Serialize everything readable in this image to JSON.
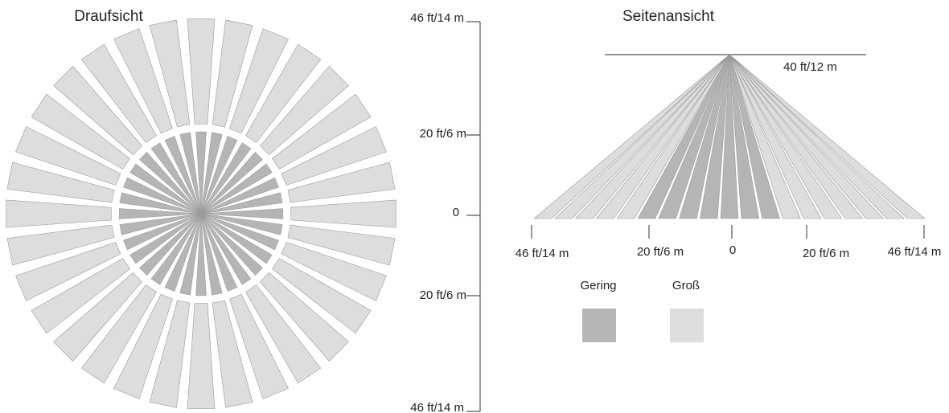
{
  "top_view": {
    "title": "Draufsicht",
    "outer_zone_count": 32,
    "inner_zone_count": 32
  },
  "scale": {
    "labels": [
      "46 ft/14 m",
      "20 ft/6 m",
      "0",
      "20 ft/6 m",
      "46 ft/14 m"
    ]
  },
  "side_view": {
    "title": "Seitenansicht",
    "height_label": "40 ft/12 m",
    "distance_labels": [
      "46 ft/14 m",
      "20 ft/6 m",
      "0",
      "20 ft/6 m",
      "46 ft/14 m"
    ],
    "beam_count": 19
  },
  "legend": {
    "items": [
      {
        "label": "Gering",
        "color": "#b4b5b7"
      },
      {
        "label": "Groß",
        "color": "#dcdddd"
      }
    ]
  },
  "colors": {
    "low": "#b4b5b7",
    "high": "#dcdddd",
    "line": "#555555",
    "outline": "#9a9a9a"
  }
}
